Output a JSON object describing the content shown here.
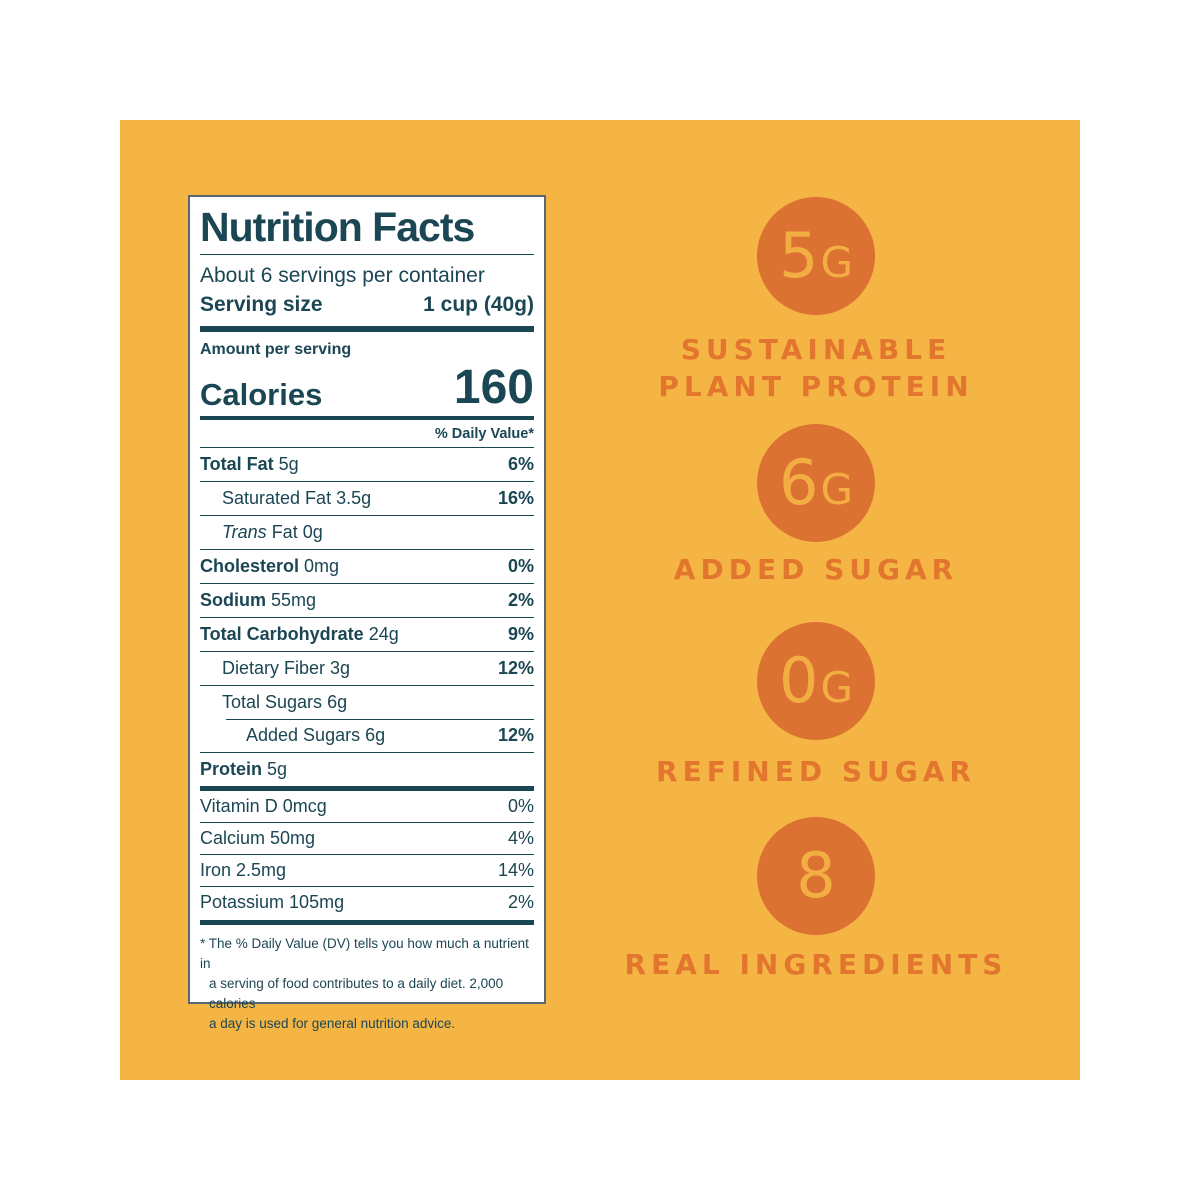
{
  "colors": {
    "background": "#FFFFFF",
    "panel_yellow": "#F5B544",
    "circle_orange": "#DC7232",
    "headline_orange": "#E2762E",
    "badge_text_yellow": "#F2AE42",
    "label_ink_teal": "#1B4653"
  },
  "nutrition_label": {
    "title": "Nutrition Facts",
    "servings_line": "About 6 servings per container",
    "serving_size_label": "Serving size",
    "serving_size_value": "1 cup (40g)",
    "amount_per_serving": "Amount per serving",
    "calories_label": "Calories",
    "calories_value": "160",
    "daily_value_header": "% Daily Value*",
    "nutrient_rows": [
      {
        "name": "Total Fat",
        "amount": "5g",
        "dv": "6%",
        "bold": true,
        "indent": 0
      },
      {
        "name": "Saturated Fat",
        "amount": "3.5g",
        "dv": "16%",
        "bold": false,
        "indent": 1
      },
      {
        "name": "Fat",
        "italic_prefix": "Trans",
        "amount": "0g",
        "dv": "",
        "bold": false,
        "indent": 1
      },
      {
        "name": "Cholesterol",
        "amount": "0mg",
        "dv": "0%",
        "bold": true,
        "indent": 0
      },
      {
        "name": "Sodium",
        "amount": "55mg",
        "dv": "2%",
        "bold": true,
        "indent": 0
      },
      {
        "name": "Total Carbohydrate",
        "amount": "24g",
        "dv": "9%",
        "bold": true,
        "indent": 0
      },
      {
        "name": "Dietary Fiber",
        "amount": "3g",
        "dv": "12%",
        "bold": false,
        "indent": 1
      },
      {
        "name": "Total Sugars",
        "amount": "6g",
        "dv": "",
        "bold": false,
        "indent": 1
      },
      {
        "name": "Added Sugars",
        "amount": "6g",
        "dv": "12%",
        "bold": false,
        "indent": 2,
        "rule_indent": true
      },
      {
        "name": "Protein",
        "amount": "5g",
        "dv": "",
        "bold": true,
        "indent": 0
      }
    ],
    "micronutrient_rows": [
      {
        "name": "Vitamin D",
        "amount": "0mcg",
        "dv": "0%"
      },
      {
        "name": "Calcium",
        "amount": "50mg",
        "dv": "4%"
      },
      {
        "name": "Iron",
        "amount": "2.5mg",
        "dv": "14%"
      },
      {
        "name": "Potassium",
        "amount": "105mg",
        "dv": "2%"
      }
    ],
    "footnote_lines": [
      "* The % Daily Value (DV) tells you how much a nutrient in",
      "a serving of food contributes to a daily diet. 2,000 calories",
      "a day is used for general nutrition advice."
    ]
  },
  "callouts": [
    {
      "value": "5",
      "unit": "G",
      "label_lines": [
        "SUSTAINABLE",
        "PLANT PROTEIN"
      ]
    },
    {
      "value": "6",
      "unit": "G",
      "label_lines": [
        "ADDED SUGAR"
      ]
    },
    {
      "value": "0",
      "unit": "G",
      "label_lines": [
        "REFINED SUGAR"
      ]
    },
    {
      "value": "8",
      "unit": "",
      "label_lines": [
        "REAL INGREDIENTS"
      ]
    }
  ]
}
